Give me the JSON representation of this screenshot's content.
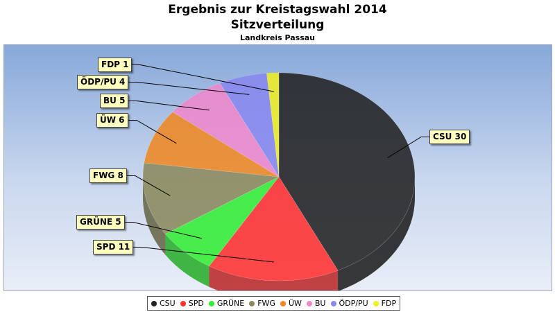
{
  "header": {
    "title": "Ergebnis zur Kreistagswahl 2014",
    "subtitle": "Sitzverteilung",
    "caption": "Landkreis Passau"
  },
  "chart_data": {
    "type": "pie",
    "title": "Ergebnis zur Kreistagswahl 2014",
    "subtitle": "Sitzverteilung",
    "caption": "Landkreis Passau",
    "categories": [
      "CSU",
      "SPD",
      "GRÜNE",
      "FWG",
      "ÜW",
      "BU",
      "ÖDP/PU",
      "FDP"
    ],
    "values": [
      30,
      11,
      5,
      8,
      6,
      5,
      4,
      1
    ],
    "data_labels": [
      "CSU 30",
      "SPD 11",
      "GRÜNE 5",
      "FWG 8",
      "ÜW 6",
      "BU 5",
      "ÖDP/PU 4",
      "FDP 1"
    ],
    "colors": [
      "#222222",
      "#ff3030",
      "#33ee33",
      "#8a8a5c",
      "#ee8822",
      "#ee88cc",
      "#8888ee",
      "#eeee22"
    ],
    "legend_position": "bottom"
  }
}
